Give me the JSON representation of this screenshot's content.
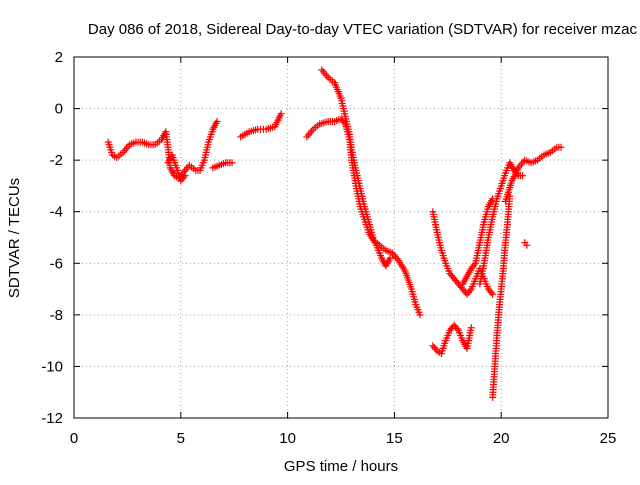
{
  "colors": {
    "series": "#ff0000",
    "grid": "#a0a0a0",
    "axis": "#000000"
  },
  "chart_data": {
    "type": "scatter",
    "title": "Day 086 of 2018, Sidereal Day-to-day VTEC variation (SDTVAR) for receiver mzac",
    "xlabel": "GPS time / hours",
    "ylabel": "SDTVAR / TECUs",
    "xlim": [
      0,
      25
    ],
    "ylim": [
      -12,
      2
    ],
    "x_ticks": [
      0,
      5,
      10,
      15,
      20,
      25
    ],
    "x_tick_labels": [
      "0",
      "5",
      "10",
      "15",
      "20",
      "25"
    ],
    "y_ticks": [
      -12,
      -10,
      -8,
      -6,
      -4,
      -2,
      0,
      2
    ],
    "y_tick_labels": [
      "-12",
      "-10",
      "-8",
      "-6",
      "-4",
      "-2",
      "0",
      "2"
    ],
    "grid": true,
    "marker": "+",
    "series": [
      {
        "name": "SDTVAR",
        "tracks": [
          [
            [
              1.6,
              -1.3
            ],
            [
              1.8,
              -1.8
            ],
            [
              2.0,
              -1.9
            ],
            [
              2.3,
              -1.7
            ],
            [
              2.6,
              -1.4
            ],
            [
              2.9,
              -1.3
            ],
            [
              3.2,
              -1.3
            ],
            [
              3.5,
              -1.4
            ],
            [
              3.8,
              -1.4
            ],
            [
              4.1,
              -1.2
            ],
            [
              4.3,
              -0.9
            ],
            [
              4.4,
              -1.5
            ],
            [
              4.5,
              -2.3
            ],
            [
              4.7,
              -2.6
            ],
            [
              4.9,
              -2.7
            ],
            [
              5.1,
              -2.5
            ],
            [
              5.4,
              -2.2
            ],
            [
              5.7,
              -2.4
            ],
            [
              5.9,
              -2.4
            ],
            [
              6.1,
              -2.0
            ],
            [
              6.3,
              -1.3
            ],
            [
              6.5,
              -0.8
            ],
            [
              6.7,
              -0.5
            ]
          ],
          [
            [
              4.4,
              -2.1
            ],
            [
              4.6,
              -1.8
            ],
            [
              4.8,
              -2.3
            ],
            [
              5.0,
              -2.8
            ],
            [
              5.2,
              -2.6
            ]
          ],
          [
            [
              6.5,
              -2.3
            ],
            [
              6.8,
              -2.2
            ],
            [
              7.1,
              -2.1
            ],
            [
              7.4,
              -2.1
            ]
          ],
          [
            [
              7.8,
              -1.1
            ],
            [
              8.2,
              -0.9
            ],
            [
              8.6,
              -0.8
            ],
            [
              9.0,
              -0.8
            ],
            [
              9.4,
              -0.7
            ],
            [
              9.7,
              -0.2
            ]
          ],
          [
            [
              10.9,
              -1.1
            ],
            [
              11.2,
              -0.8
            ],
            [
              11.5,
              -0.6
            ],
            [
              11.9,
              -0.5
            ],
            [
              12.2,
              -0.5
            ],
            [
              12.5,
              -0.4
            ],
            [
              12.7,
              -0.6
            ],
            [
              12.9,
              -1.2
            ],
            [
              13.0,
              -2.0
            ],
            [
              13.2,
              -3.0
            ],
            [
              13.4,
              -3.8
            ],
            [
              13.6,
              -4.3
            ],
            [
              13.8,
              -4.8
            ],
            [
              14.0,
              -5.1
            ],
            [
              14.3,
              -5.3
            ],
            [
              14.6,
              -5.5
            ],
            [
              14.9,
              -5.6
            ],
            [
              15.2,
              -5.9
            ],
            [
              15.5,
              -6.3
            ],
            [
              15.8,
              -7.0
            ],
            [
              16.0,
              -7.6
            ],
            [
              16.2,
              -8.0
            ]
          ],
          [
            [
              11.6,
              1.5
            ],
            [
              11.9,
              1.2
            ],
            [
              12.2,
              1.0
            ],
            [
              12.5,
              0.4
            ],
            [
              12.7,
              -0.3
            ],
            [
              12.9,
              -1.0
            ],
            [
              13.0,
              -1.6
            ],
            [
              13.2,
              -2.4
            ],
            [
              13.4,
              -3.1
            ],
            [
              13.6,
              -3.8
            ],
            [
              13.8,
              -4.4
            ],
            [
              14.0,
              -5.0
            ],
            [
              14.2,
              -5.4
            ],
            [
              14.4,
              -5.8
            ],
            [
              14.6,
              -6.1
            ],
            [
              14.8,
              -5.8
            ]
          ],
          [
            [
              16.8,
              -9.2
            ],
            [
              17.0,
              -9.4
            ],
            [
              17.2,
              -9.5
            ],
            [
              17.4,
              -9.0
            ],
            [
              17.6,
              -8.6
            ],
            [
              17.8,
              -8.4
            ],
            [
              18.0,
              -8.6
            ],
            [
              18.2,
              -9.0
            ],
            [
              18.4,
              -9.3
            ],
            [
              18.6,
              -8.5
            ]
          ],
          [
            [
              16.8,
              -4.0
            ],
            [
              17.0,
              -4.8
            ],
            [
              17.2,
              -5.5
            ],
            [
              17.4,
              -6.0
            ],
            [
              17.6,
              -6.4
            ],
            [
              17.8,
              -6.6
            ],
            [
              18.0,
              -6.8
            ],
            [
              18.2,
              -7.0
            ],
            [
              18.4,
              -7.2
            ],
            [
              18.6,
              -7.0
            ],
            [
              18.8,
              -6.6
            ],
            [
              19.0,
              -6.2
            ],
            [
              19.2,
              -6.6
            ],
            [
              19.4,
              -7.0
            ],
            [
              19.6,
              -7.2
            ]
          ],
          [
            [
              18.2,
              -6.8
            ],
            [
              18.4,
              -6.5
            ],
            [
              18.6,
              -6.2
            ],
            [
              18.8,
              -6.0
            ],
            [
              19.0,
              -5.2
            ],
            [
              19.2,
              -4.4
            ],
            [
              19.4,
              -3.8
            ],
            [
              19.6,
              -3.5
            ]
          ],
          [
            [
              19.0,
              -6.8
            ],
            [
              19.2,
              -6.0
            ],
            [
              19.4,
              -5.0
            ],
            [
              19.6,
              -4.2
            ],
            [
              19.8,
              -3.5
            ],
            [
              20.0,
              -3.0
            ],
            [
              20.2,
              -2.5
            ],
            [
              20.4,
              -2.1
            ],
            [
              20.6,
              -2.4
            ],
            [
              20.8,
              -2.6
            ],
            [
              21.0,
              -2.6
            ]
          ],
          [
            [
              19.6,
              -11.2
            ],
            [
              19.7,
              -10.0
            ],
            [
              19.8,
              -8.8
            ],
            [
              19.9,
              -7.8
            ],
            [
              20.0,
              -7.0
            ],
            [
              20.1,
              -6.2
            ],
            [
              20.2,
              -5.2
            ],
            [
              20.3,
              -4.4
            ],
            [
              20.4,
              -3.4
            ]
          ],
          [
            [
              20.2,
              -3.6
            ],
            [
              20.5,
              -2.8
            ],
            [
              20.8,
              -2.3
            ],
            [
              21.1,
              -2.0
            ],
            [
              21.4,
              -2.1
            ],
            [
              21.7,
              -2.0
            ],
            [
              22.0,
              -1.8
            ],
            [
              22.3,
              -1.7
            ],
            [
              22.6,
              -1.5
            ],
            [
              22.8,
              -1.5
            ]
          ],
          [
            [
              21.1,
              -5.2
            ],
            [
              21.2,
              -5.3
            ]
          ]
        ]
      }
    ]
  }
}
